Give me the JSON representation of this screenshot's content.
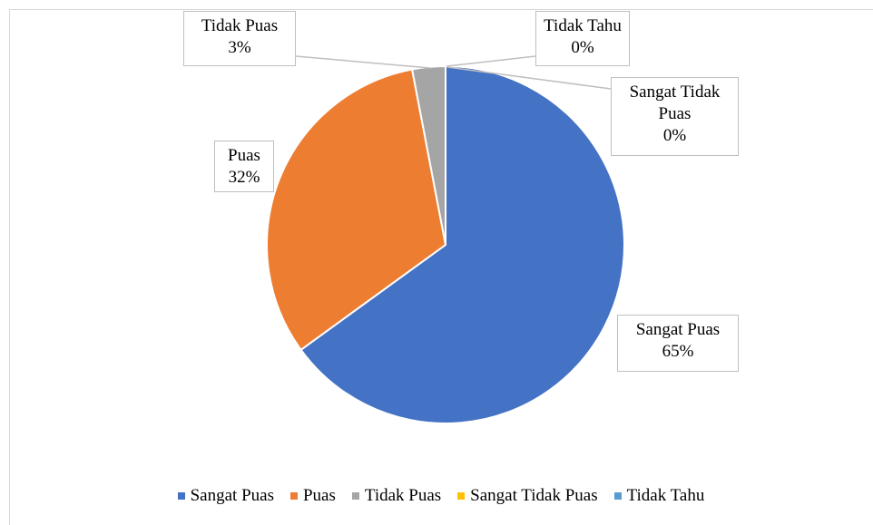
{
  "chart_data": {
    "type": "pie",
    "categories": [
      "Sangat Puas",
      "Puas",
      "Tidak Puas",
      "Sangat Tidak Puas",
      "Tidak Tahu"
    ],
    "values": [
      65,
      32,
      3,
      0,
      0
    ],
    "value_labels": [
      "65%",
      "32%",
      "3%",
      "0%",
      "0%"
    ],
    "colors": [
      "#4472c4",
      "#ed7d31",
      "#a5a5a5",
      "#ffc000",
      "#5b9bd5"
    ],
    "legend": "bottom"
  }
}
